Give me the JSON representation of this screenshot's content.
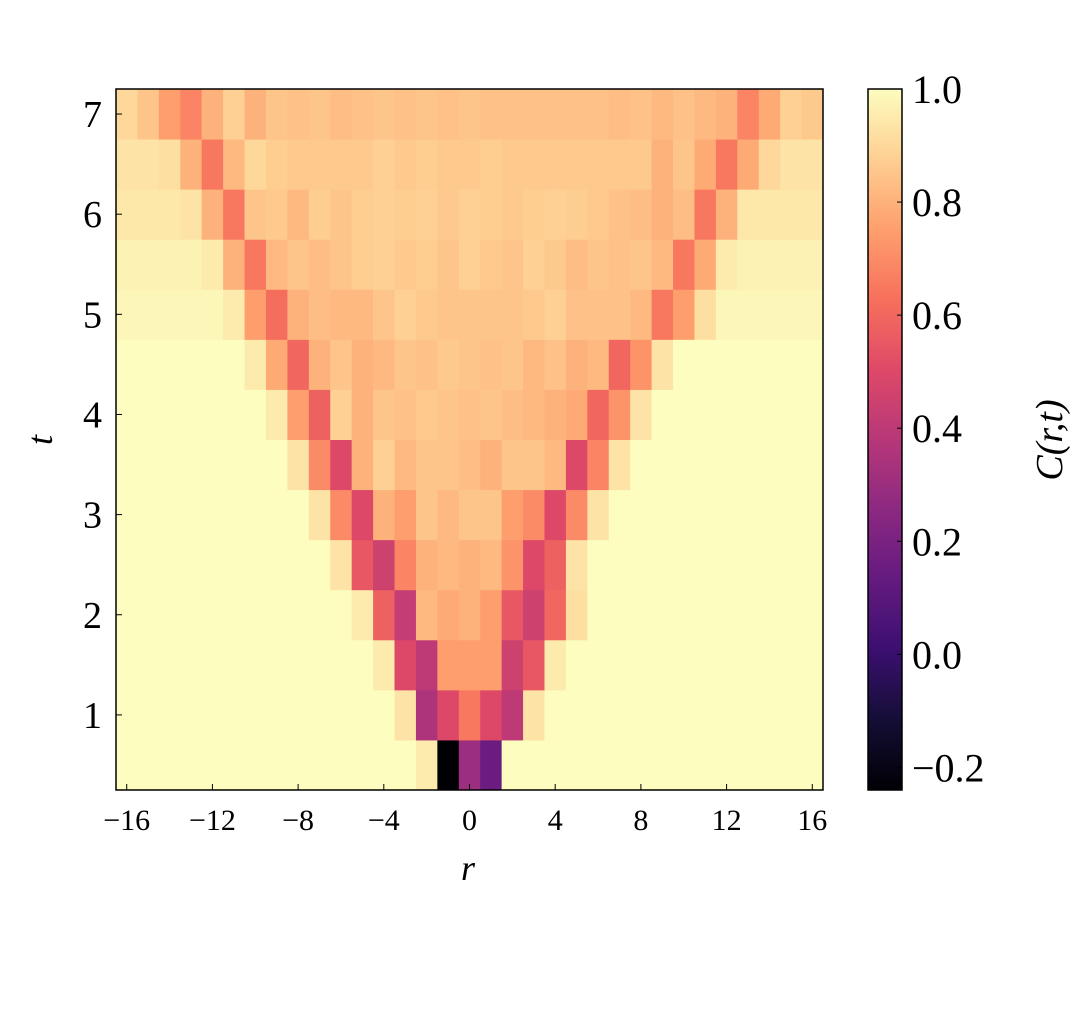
{
  "chart_data": {
    "type": "heatmap",
    "x_label": "r",
    "y_label": "t",
    "x": [
      -16,
      -15,
      -14,
      -13,
      -12,
      -11,
      -10,
      -9,
      -8,
      -7,
      -6,
      -5,
      -4,
      -3,
      -2,
      -1,
      0,
      1,
      2,
      3,
      4,
      5,
      6,
      7,
      8,
      9,
      10,
      11,
      12,
      13,
      14,
      15,
      16
    ],
    "y": [
      0.5,
      1,
      1.5,
      2,
      2.5,
      3,
      3.5,
      4,
      4.5,
      5,
      5.5,
      6,
      6.5,
      7
    ],
    "z": [
      [
        1,
        1,
        1,
        1,
        1,
        1,
        1,
        1,
        1,
        1,
        1,
        1,
        1,
        1,
        0.95,
        -0.24,
        0.3,
        0.15,
        1,
        1,
        1,
        1,
        1,
        1,
        1,
        1,
        1,
        1,
        1,
        1,
        1,
        1,
        1
      ],
      [
        1,
        1,
        1,
        1,
        1,
        1,
        1,
        1,
        1,
        1,
        1,
        1,
        1,
        0.93,
        0.35,
        0.5,
        0.65,
        0.5,
        0.4,
        0.93,
        1,
        1,
        1,
        1,
        1,
        1,
        1,
        1,
        1,
        1,
        1,
        1,
        1
      ],
      [
        1,
        1,
        1,
        1,
        1,
        1,
        1,
        1,
        1,
        1,
        1,
        1,
        0.95,
        0.5,
        0.4,
        0.75,
        0.75,
        0.75,
        0.45,
        0.55,
        0.95,
        1,
        1,
        1,
        1,
        1,
        1,
        1,
        1,
        1,
        1,
        1,
        1
      ],
      [
        1,
        1,
        1,
        1,
        1,
        1,
        1,
        1,
        1,
        1,
        1,
        0.95,
        0.58,
        0.42,
        0.82,
        0.78,
        0.8,
        0.75,
        0.55,
        0.45,
        0.6,
        0.92,
        1,
        1,
        1,
        1,
        1,
        1,
        1,
        1,
        1,
        1,
        1
      ],
      [
        1,
        1,
        1,
        1,
        1,
        1,
        1,
        1,
        1,
        1,
        0.93,
        0.55,
        0.45,
        0.68,
        0.8,
        0.82,
        0.8,
        0.82,
        0.72,
        0.5,
        0.58,
        0.93,
        1,
        1,
        1,
        1,
        1,
        1,
        1,
        1,
        1,
        1,
        1
      ],
      [
        1,
        1,
        1,
        1,
        1,
        1,
        1,
        1,
        1,
        0.93,
        0.7,
        0.5,
        0.8,
        0.75,
        0.85,
        0.82,
        0.85,
        0.85,
        0.75,
        0.7,
        0.5,
        0.7,
        0.93,
        1,
        1,
        1,
        1,
        1,
        1,
        1,
        1,
        1,
        1
      ],
      [
        1,
        1,
        1,
        1,
        1,
        1,
        1,
        1,
        0.93,
        0.7,
        0.5,
        0.8,
        0.88,
        0.82,
        0.85,
        0.85,
        0.83,
        0.8,
        0.85,
        0.85,
        0.82,
        0.5,
        0.68,
        0.93,
        1,
        1,
        1,
        1,
        1,
        1,
        1,
        1,
        1
      ],
      [
        1,
        1,
        1,
        1,
        1,
        1,
        1,
        0.95,
        0.75,
        0.58,
        0.88,
        0.8,
        0.85,
        0.84,
        0.86,
        0.85,
        0.84,
        0.85,
        0.83,
        0.82,
        0.8,
        0.78,
        0.6,
        0.72,
        0.93,
        1,
        1,
        1,
        1,
        1,
        1,
        1,
        1
      ],
      [
        1,
        1,
        1,
        1,
        1,
        1,
        0.95,
        0.78,
        0.6,
        0.8,
        0.85,
        0.8,
        0.82,
        0.85,
        0.84,
        0.86,
        0.85,
        0.84,
        0.85,
        0.82,
        0.84,
        0.8,
        0.82,
        0.6,
        0.72,
        0.93,
        1,
        1,
        1,
        1,
        1,
        1,
        1
      ],
      [
        0.98,
        0.98,
        0.98,
        0.98,
        0.98,
        0.95,
        0.75,
        0.62,
        0.8,
        0.83,
        0.82,
        0.82,
        0.85,
        0.88,
        0.86,
        0.85,
        0.85,
        0.85,
        0.85,
        0.86,
        0.88,
        0.84,
        0.84,
        0.84,
        0.82,
        0.65,
        0.75,
        0.92,
        0.98,
        0.98,
        0.98,
        0.98,
        0.98
      ],
      [
        0.97,
        0.97,
        0.97,
        0.97,
        0.95,
        0.8,
        0.65,
        0.82,
        0.85,
        0.83,
        0.85,
        0.87,
        0.88,
        0.86,
        0.87,
        0.85,
        0.88,
        0.86,
        0.85,
        0.88,
        0.86,
        0.83,
        0.85,
        0.84,
        0.85,
        0.82,
        0.65,
        0.78,
        0.95,
        0.97,
        0.97,
        0.97,
        0.97
      ],
      [
        0.94,
        0.94,
        0.94,
        0.93,
        0.8,
        0.65,
        0.85,
        0.86,
        0.82,
        0.87,
        0.85,
        0.87,
        0.88,
        0.87,
        0.88,
        0.86,
        0.88,
        0.87,
        0.86,
        0.87,
        0.88,
        0.87,
        0.86,
        0.84,
        0.83,
        0.8,
        0.83,
        0.65,
        0.8,
        0.94,
        0.94,
        0.94,
        0.94
      ],
      [
        0.93,
        0.93,
        0.92,
        0.8,
        0.65,
        0.82,
        0.9,
        0.87,
        0.86,
        0.86,
        0.86,
        0.86,
        0.88,
        0.86,
        0.87,
        0.86,
        0.86,
        0.87,
        0.86,
        0.86,
        0.86,
        0.86,
        0.86,
        0.86,
        0.86,
        0.8,
        0.85,
        0.78,
        0.65,
        0.78,
        0.9,
        0.93,
        0.93
      ],
      [
        0.9,
        0.85,
        0.75,
        0.68,
        0.8,
        0.88,
        0.8,
        0.85,
        0.84,
        0.85,
        0.83,
        0.84,
        0.85,
        0.84,
        0.85,
        0.84,
        0.85,
        0.84,
        0.84,
        0.84,
        0.84,
        0.84,
        0.84,
        0.83,
        0.84,
        0.82,
        0.84,
        0.82,
        0.8,
        0.68,
        0.78,
        0.88,
        0.86
      ]
    ],
    "xlim": [
      -16.5,
      16.5
    ],
    "ylim": [
      0.25,
      7.25
    ],
    "xticks": [
      {
        "value": -16,
        "label": "−16"
      },
      {
        "value": -12,
        "label": "−12"
      },
      {
        "value": -8,
        "label": "−8"
      },
      {
        "value": -4,
        "label": "−4"
      },
      0,
      4,
      8,
      12,
      16
    ],
    "yticks": [
      1,
      2,
      3,
      4,
      5,
      6,
      7
    ],
    "colormap": "magma",
    "colorbar": {
      "label": "C(r,t)",
      "lim": [
        -0.24,
        1.0
      ],
      "ticks": [
        {
          "value": -0.2,
          "label": "−0.2"
        },
        {
          "value": 0,
          "label": "0.0"
        },
        0.2,
        0.4,
        0.6,
        0.8,
        {
          "value": 1,
          "label": "1.0"
        }
      ]
    }
  }
}
